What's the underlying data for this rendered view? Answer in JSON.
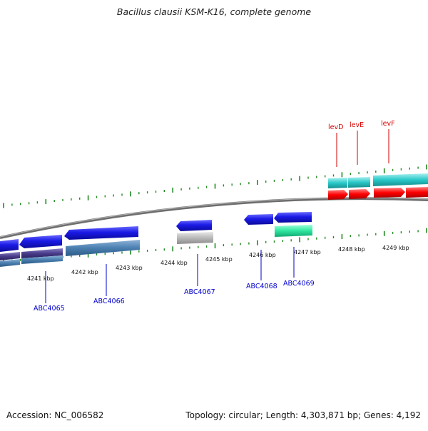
{
  "title": "Bacillus clausii KSM-K16, complete genome",
  "footer": {
    "accession": "Accession: NC_006582",
    "summary": "Topology: circular; Length: 4,303,871 bp; Genes: 4,192"
  },
  "colors": {
    "backbone": "#7f7f7f",
    "tick": "#1f8a1f",
    "gene_label": "#0000cc",
    "lev_label": "#d40000",
    "blue": "#1414e0",
    "steel": "#4a7fb0",
    "navy": "#4a3d8a",
    "gray": "#b0b0b0",
    "mint": "#2ee6a0",
    "cyan": "#29c8c8",
    "red": "#ff0000"
  },
  "scale_labels": [
    "4241 kbp",
    "4242 kbp",
    "4243 kbp",
    "4244 kbp",
    "4245 kbp",
    "4246 kbp",
    "4247 kbp",
    "4248 kbp",
    "4249 kbp"
  ],
  "gene_labels": [
    "ABC4065",
    "ABC4066",
    "ABC4067",
    "ABC4068",
    "ABC4069"
  ],
  "lev_labels": [
    "levD",
    "levE",
    "levF"
  ]
}
